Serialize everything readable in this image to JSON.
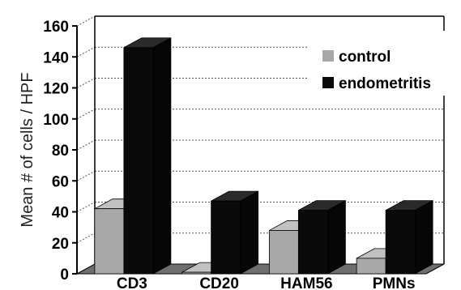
{
  "chart_data": {
    "type": "bar",
    "title": "",
    "xlabel": "",
    "ylabel": "Mean # of cells / HPF",
    "categories": [
      "CD3",
      "CD20",
      "HAM56",
      "PMNs"
    ],
    "series": [
      {
        "name": "control",
        "values": [
          42,
          1,
          28,
          10
        ]
      },
      {
        "name": "endometritis",
        "values": [
          146,
          47,
          41,
          41
        ]
      }
    ],
    "ylim": [
      0,
      160
    ],
    "yticks": [
      0,
      20,
      40,
      60,
      80,
      100,
      120,
      140,
      160
    ],
    "grid": true,
    "legend": "top-right",
    "style": "3d",
    "colors": {
      "control": "#a8a8a8",
      "endometritis": "#0a0a0a"
    }
  }
}
